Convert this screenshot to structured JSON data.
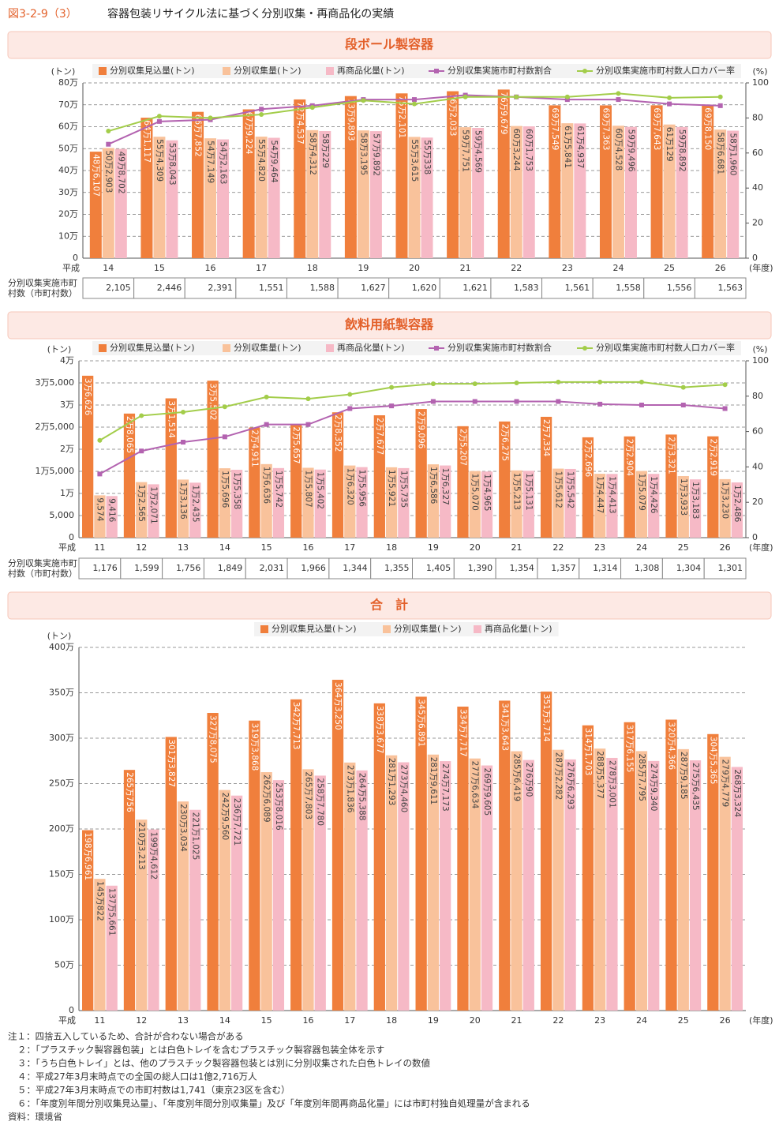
{
  "header": {
    "figure_no": "図3-2-9（3）",
    "title": "容器包装リサイクル法に基づく分別収集・再商品化の実績"
  },
  "chart_data": [
    {
      "type": "bar",
      "title": "段ボール製容器",
      "y_label": "(トン)",
      "y2_label": "(%)",
      "x_prefix": "平成",
      "x_suffix": "(年度)",
      "grid": true,
      "categories": [
        "14",
        "15",
        "16",
        "17",
        "18",
        "19",
        "20",
        "21",
        "22",
        "23",
        "24",
        "25",
        "26"
      ],
      "ylim": [
        0,
        800000
      ],
      "yticks": [
        0,
        {
          "value": 100000,
          "label": "10万"
        },
        {
          "value": 200000,
          "label": "20万"
        },
        {
          "value": 300000,
          "label": "30万"
        },
        {
          "value": 400000,
          "label": "40万"
        },
        {
          "value": 500000,
          "label": "50万"
        },
        {
          "value": 600000,
          "label": "60万"
        },
        {
          "value": 700000,
          "label": "70万"
        },
        {
          "value": 800000,
          "label": "80万"
        }
      ],
      "y2lim": [
        0,
        100
      ],
      "y2ticks": [
        0,
        20,
        40,
        60,
        80,
        100
      ],
      "series": [
        {
          "name": "分別収集見込量(トン)",
          "color": "#f07f3c",
          "values": [
            486107,
            641117,
            667852,
            679224,
            724537,
            739893,
            752101,
            762033,
            769679,
            697549,
            697363,
            697643,
            698150
          ],
          "value_labels": [
            "48万6,107",
            "64万1,117",
            "66万7,852",
            "67万9,224",
            "72万4,537",
            "73万9,893",
            "75万2,101",
            "76万2,033",
            "76万9,679",
            "69万7,549",
            "69万7,363",
            "69万7,643",
            "69万8,150"
          ]
        },
        {
          "name": "分別収集量(トン)",
          "color": "#f9c29b",
          "values": [
            502903,
            554309,
            547149,
            554820,
            584312,
            583195,
            553615,
            597751,
            603244,
            615841,
            604528,
            610129,
            586681
          ],
          "value_labels": [
            "50万2,903",
            "55万4,309",
            "54万7,149",
            "55万4,820",
            "58万4,312",
            "58万3,195",
            "55万3,615",
            "59万7,751",
            "60万3,244",
            "61万5,841",
            "60万4,528",
            "61万129",
            "58万6,681"
          ]
        },
        {
          "name": "再商品化量(トン)",
          "color": "#f6b9c6",
          "values": [
            498702,
            538043,
            542163,
            549464,
            580229,
            579892,
            550338,
            594569,
            601753,
            614937,
            599496,
            598892,
            581960
          ],
          "value_labels": [
            "49万8,702",
            "53万8,043",
            "54万2,163",
            "54万9,464",
            "58万229",
            "57万9,892",
            "55万338",
            "59万4,569",
            "60万1,753",
            "61万4,937",
            "59万9,496",
            "59万8,892",
            "58万1,960"
          ]
        },
        {
          "name": "分別収集実施市町村数割合",
          "type": "line",
          "axis": "y2",
          "marker": "square",
          "color": "#b363b0",
          "values": [
            65,
            78,
            79,
            85,
            87,
            90.5,
            90.5,
            93,
            92,
            90.5,
            90.5,
            88,
            87
          ]
        },
        {
          "name": "分別収集実施市町村数人口カバー率",
          "type": "line",
          "axis": "y2",
          "marker": "circle",
          "color": "#a3cd4a",
          "values": [
            72.5,
            81,
            80,
            82,
            86,
            90,
            88,
            92,
            92,
            92,
            94,
            91.5,
            92
          ]
        }
      ],
      "table": {
        "label": [
          "分別収集実施市町",
          "村数（市町村数）"
        ],
        "values": [
          "2,105",
          "2,446",
          "2,391",
          "1,551",
          "1,588",
          "1,627",
          "1,620",
          "1,621",
          "1,583",
          "1,561",
          "1,558",
          "1,556",
          "1,563"
        ]
      }
    },
    {
      "type": "bar",
      "title": "飲料用紙製容器",
      "y_label": "(トン)",
      "y2_label": "(%)",
      "x_prefix": "平成",
      "x_suffix": "(年度)",
      "grid": true,
      "categories": [
        "11",
        "12",
        "13",
        "14",
        "15",
        "16",
        "17",
        "18",
        "19",
        "20",
        "21",
        "22",
        "23",
        "24",
        "25",
        "26"
      ],
      "ylim": [
        0,
        40000
      ],
      "yticks": [
        0,
        {
          "value": 5000,
          "label": "5,000"
        },
        {
          "value": 10000,
          "label": "1万"
        },
        {
          "value": 15000,
          "label": "1万5,000"
        },
        {
          "value": 20000,
          "label": "2万"
        },
        {
          "value": 25000,
          "label": "2万5,000"
        },
        {
          "value": 30000,
          "label": "3万"
        },
        {
          "value": 35000,
          "label": "3万5,000"
        },
        {
          "value": 40000,
          "label": "4万"
        }
      ],
      "y2lim": [
        0,
        100
      ],
      "y2ticks": [
        0,
        20,
        40,
        60,
        80,
        100
      ],
      "series": [
        {
          "name": "分別収集見込量(トン)",
          "color": "#f07f3c",
          "values": [
            36626,
            28065,
            31514,
            35502,
            24911,
            25657,
            28352,
            27677,
            29096,
            25207,
            26275,
            27334,
            22696,
            22904,
            23321,
            22919
          ],
          "value_labels": [
            "3万6,626",
            "2万8,065",
            "3万1,514",
            "3万5,502",
            "2万4,911",
            "2万5,657",
            "2万8,352",
            "2万7,677",
            "2万9,096",
            "2万5,207",
            "2万6,275",
            "2万7,334",
            "2万2,696",
            "2万2,904",
            "2万3,321",
            "2万2,919"
          ]
        },
        {
          "name": "分別収集量(トン)",
          "color": "#f9c29b",
          "values": [
            9574,
            12565,
            13136,
            15696,
            16636,
            15807,
            16320,
            15921,
            16586,
            15070,
            15213,
            15612,
            14447,
            15079,
            13933,
            13230
          ],
          "value_labels": [
            "9,574",
            "1万2,565",
            "1万3,136",
            "1万5,696",
            "1万6,636",
            "1万5,807",
            "1万6,320",
            "1万5,921",
            "1万6,586",
            "1万5,070",
            "1万5,213",
            "1万5,612",
            "1万4,447",
            "1万5,079",
            "1万3,933",
            "1万3,230"
          ]
        },
        {
          "name": "再商品化量(トン)",
          "color": "#f6b9c6",
          "values": [
            9416,
            12071,
            12435,
            15358,
            15742,
            15402,
            15956,
            15735,
            16327,
            14965,
            15131,
            15542,
            14413,
            14426,
            13183,
            12486
          ],
          "value_labels": [
            "9,416",
            "1万2,071",
            "1万2,435",
            "1万5,358",
            "1万5,742",
            "1万5,402",
            "1万5,956",
            "1万5,735",
            "1万6,327",
            "1万4,965",
            "1万5,131",
            "1万5,542",
            "1万4,413",
            "1万4,426",
            "1万3,183",
            "1万2,486"
          ]
        },
        {
          "name": "分別収集実施市町村数割合",
          "type": "line",
          "axis": "y2",
          "marker": "square",
          "color": "#b363b0",
          "values": [
            36,
            49,
            54,
            57,
            64,
            64,
            73,
            74.5,
            77,
            77,
            77,
            77,
            75.5,
            75,
            75,
            73
          ]
        },
        {
          "name": "分別収集実施市町村数人口カバー率",
          "type": "line",
          "axis": "y2",
          "marker": "circle",
          "color": "#a3cd4a",
          "values": [
            55,
            69,
            71,
            74,
            79.5,
            78.5,
            81,
            85,
            87,
            87,
            87.5,
            88,
            88,
            88,
            85,
            86.5
          ]
        }
      ],
      "table": {
        "label": [
          "分別収集実施市町",
          "村数（市町村数）"
        ],
        "values": [
          "1,176",
          "1,599",
          "1,756",
          "1,849",
          "2,031",
          "1,966",
          "1,344",
          "1,355",
          "1,405",
          "1,390",
          "1,354",
          "1,357",
          "1,314",
          "1,308",
          "1,304",
          "1,301"
        ]
      }
    },
    {
      "type": "bar",
      "title": "合　計",
      "y_label": "(トン)",
      "x_prefix": "平成",
      "x_suffix": "(年度)",
      "grid": true,
      "categories": [
        "11",
        "12",
        "13",
        "14",
        "15",
        "16",
        "17",
        "18",
        "19",
        "20",
        "21",
        "22",
        "23",
        "24",
        "25",
        "26"
      ],
      "ylim": [
        0,
        4000000
      ],
      "yticks": [
        0,
        {
          "value": 500000,
          "label": "50万"
        },
        {
          "value": 1000000,
          "label": "100万"
        },
        {
          "value": 1500000,
          "label": "150万"
        },
        {
          "value": 2000000,
          "label": "200万"
        },
        {
          "value": 2500000,
          "label": "250万"
        },
        {
          "value": 3000000,
          "label": "300万"
        },
        {
          "value": 3500000,
          "label": "350万"
        },
        {
          "value": 4000000,
          "label": "400万"
        }
      ],
      "series": [
        {
          "name": "分別収集見込量(トン)",
          "color": "#f07f3c",
          "values": [
            1986961,
            2650756,
            3013827,
            3278075,
            3193868,
            3427713,
            3643250,
            3383677,
            3456891,
            3347717,
            3413643,
            3513714,
            3141703,
            3176155,
            3204366,
            3045365
          ],
          "value_labels": [
            "198万6,961",
            "265万756",
            "301万3,827",
            "327万8,075",
            "319万3,868",
            "342万7,713",
            "364万3,250",
            "338万3,677",
            "345万6,891",
            "334万7,717",
            "341万3,643",
            "351万3,714",
            "314万1,703",
            "317万6,155",
            "320万4,366",
            "304万5,365"
          ]
        },
        {
          "name": "分別収集量(トン)",
          "color": "#f9c29b",
          "values": [
            1450822,
            2103213,
            2303034,
            2429560,
            2626089,
            2657803,
            2731836,
            2811293,
            2819611,
            2776634,
            2856419,
            2872282,
            2885377,
            2857795,
            2879185,
            2794779
          ],
          "value_labels": [
            "145万822",
            "210万3,213",
            "230万3,034",
            "242万9,560",
            "262万6,089",
            "265万7,803",
            "273万1,836",
            "281万1,293",
            "281万9,611",
            "277万6,634",
            "285万6,419",
            "287万2,282",
            "288万5,377",
            "285万7,795",
            "287万9,185",
            "279万4,779"
          ]
        },
        {
          "name": "再商品化量(トン)",
          "color": "#f6b9c6",
          "values": [
            1375661,
            1994612,
            2211025,
            2367721,
            2538016,
            2587780,
            2645388,
            2734460,
            2747173,
            2699605,
            2760090,
            2766293,
            2783001,
            2749340,
            2756435,
            2683324
          ],
          "value_labels": [
            "137万5,661",
            "199万4,612",
            "221万1,025",
            "236万7,721",
            "253万8,016",
            "258万7,780",
            "264万5,388",
            "273万4,460",
            "274万7,173",
            "269万9,605",
            "276万90",
            "276万6,293",
            "278万3,001",
            "274万9,340",
            "275万6,435",
            "268万3,324"
          ]
        }
      ]
    }
  ],
  "notes": [
    "注１：四捨五入しているため、合計が合わない場合がある",
    "２：「プラスチック製容器包装」とは白色トレイを含むプラスチック製容器包装全体を示す",
    "３：「うち白色トレイ」とは、他のプラスチック製容器包装とは別に分別収集された白色トレイの数値",
    "４：平成27年3月末時点での全国の総人口は1億2,716万人",
    "５：平成27年3月末時点での市町村数は1,741（東京23区を含む）",
    "６：「年度別年間分別収集見込量」、「年度別年間分別収集量」及び「年度別年間再商品化量」には市町村独自処理量が含まれる"
  ],
  "source": "資料：環境省"
}
